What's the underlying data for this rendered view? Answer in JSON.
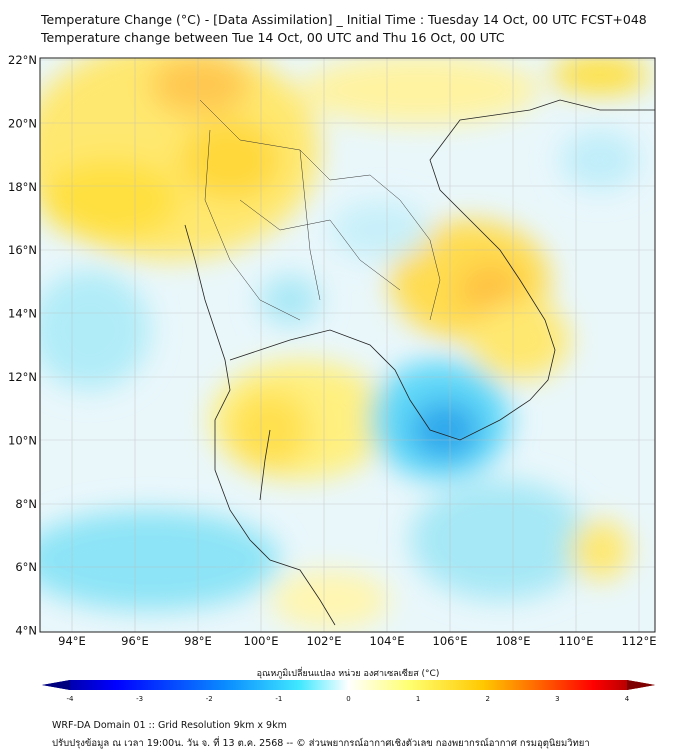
{
  "title": {
    "line1": "Temperature Change (°C) - [Data Assimilation] _ Initial Time : Tuesday 14 Oct, 00 UTC FCST+048",
    "line2": "Temperature change between Tue 14 Oct, 00 UTC and Thu 16 Oct, 00 UTC"
  },
  "map": {
    "lon_labels": [
      "94°E",
      "96°E",
      "98°E",
      "100°E",
      "102°E",
      "104°E",
      "106°E",
      "108°E",
      "110°E",
      "112°E"
    ],
    "lat_labels": [
      "22°N",
      "20°N",
      "18°N",
      "16°N",
      "14°N",
      "12°N",
      "10°N",
      "8°N",
      "6°N",
      "4°N"
    ],
    "extent": {
      "lon": [
        93,
        112.5
      ],
      "lat": [
        4,
        22.05
      ]
    }
  },
  "colorbar": {
    "title": "อุณหภูมิเปลี่ยนแปลง หน่วย องศาเซลเซียส (°C)",
    "ticks": [
      "-4",
      "-3",
      "-2",
      "-1",
      "0",
      "1",
      "2",
      "3",
      "4"
    ],
    "range": [
      -4,
      4
    ],
    "colors": [
      "#00007f",
      "#0000ff",
      "#007fff",
      "#00e5ff",
      "#ffffff",
      "#ffff66",
      "#ffcc00",
      "#ff6600",
      "#ff0000",
      "#7f0000"
    ]
  },
  "footer": {
    "line1": "WRF-DA Domain 01 :: Grid Resolution 9km x 9km",
    "line2": "ปรับปรุงข้อมูล ณ เวลา 19:00น. วัน จ. ที่ 13 ต.ค. 2568 -- © ส่วนพยากรณ์อากาศเชิงตัวเลข กองพยากรณ์อากาศ กรมอุตุนิยมวิทยา"
  }
}
